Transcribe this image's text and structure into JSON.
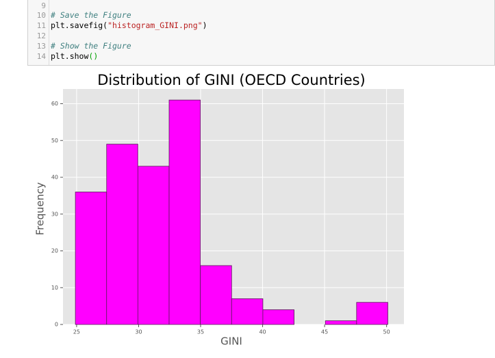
{
  "code_cell": {
    "lines": [
      {
        "number": 9
      },
      {
        "number": 10,
        "text": [
          "# Save the Figure"
        ]
      },
      {
        "number": 11,
        "text": [
          "plt.savefig(",
          "\"histogram_GINI.png\"",
          ")"
        ]
      },
      {
        "number": 12
      },
      {
        "number": 13,
        "text": [
          "# Show the Figure"
        ]
      },
      {
        "number": 14,
        "text": [
          "plt.show",
          "()"
        ]
      }
    ]
  },
  "chart_data": {
    "type": "histogram",
    "title": "Distribution of GINI (OECD Countries)",
    "x_label": "GINI",
    "y_label": "Frequency",
    "bins": [
      24.9,
      27.42,
      29.94,
      32.46,
      34.98,
      37.5,
      40.02,
      42.54,
      45.06,
      47.58,
      50.1
    ],
    "values": [
      36,
      49,
      43,
      61,
      16,
      7,
      4,
      0,
      1,
      6
    ],
    "color": "#ff00ff",
    "edgecolor": "#5a1a5a",
    "xlim": [
      23.9,
      51.4
    ],
    "ylim": [
      0,
      64
    ],
    "xticks": [
      25,
      30,
      35,
      40,
      45,
      50
    ],
    "yticks": [
      0,
      10,
      20,
      30,
      40,
      50,
      60
    ],
    "grid": true
  }
}
